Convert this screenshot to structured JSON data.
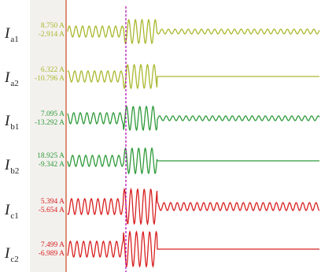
{
  "channels": [
    {
      "label": "I",
      "sub": "a1",
      "max": "8.750 A",
      "min": "-2.914 A",
      "color": "#a9b82d",
      "behavior": "continues"
    },
    {
      "label": "I",
      "sub": "a2",
      "max": "6.322 A",
      "min": "-10.796 A",
      "color": "#a9b82d",
      "behavior": "stops"
    },
    {
      "label": "I",
      "sub": "b1",
      "max": "7.095 A",
      "min": "-13.292 A",
      "color": "#2e9a3a",
      "behavior": "continues"
    },
    {
      "label": "I",
      "sub": "b2",
      "max": "18.925 A",
      "min": "-9.342 A",
      "color": "#2e9a3a",
      "behavior": "stops"
    },
    {
      "label": "I",
      "sub": "c1",
      "max": "5.394 A",
      "min": "-5.654 A",
      "color": "#d82020",
      "behavior": "continues"
    },
    {
      "label": "I",
      "sub": "c2",
      "max": "7.499 A",
      "min": "-6.989 A",
      "color": "#d82020",
      "behavior": "stops"
    }
  ],
  "cursors": {
    "left_color": "#d0603a",
    "right_color": "#b000b0"
  }
}
